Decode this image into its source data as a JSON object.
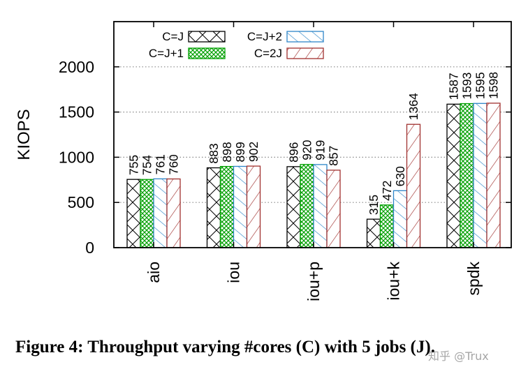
{
  "chart_data": {
    "type": "bar",
    "ylabel": "KIOPS",
    "xlabel": "",
    "ylim": [
      0,
      2500
    ],
    "yticks": [
      0,
      500,
      1000,
      1500,
      2000
    ],
    "grid": "horizontal dotted at y ticks",
    "categories": [
      "aio",
      "iou",
      "iou+p",
      "iou+k",
      "spdk"
    ],
    "series": [
      {
        "name": "C=J",
        "pattern": "crosshatch",
        "color": "#000000",
        "values": [
          755,
          883,
          896,
          315,
          1587
        ]
      },
      {
        "name": "C=J+1",
        "pattern": "green-crosshatch",
        "color": "#00a000",
        "values": [
          754,
          898,
          920,
          472,
          1593
        ]
      },
      {
        "name": "C=J+2",
        "pattern": "blue-diagonal",
        "color": "#2e86c8",
        "values": [
          761,
          899,
          919,
          630,
          1595
        ]
      },
      {
        "name": "C=2J",
        "pattern": "red-diagonal",
        "color": "#a0302e",
        "values": [
          760,
          902,
          857,
          1364,
          1598
        ]
      }
    ],
    "legend_position": "top-left, inside plot"
  },
  "caption": "Figure 4: Throughput varying #cores (C) with 5 jobs (J).",
  "watermark": "知乎 @Trux"
}
